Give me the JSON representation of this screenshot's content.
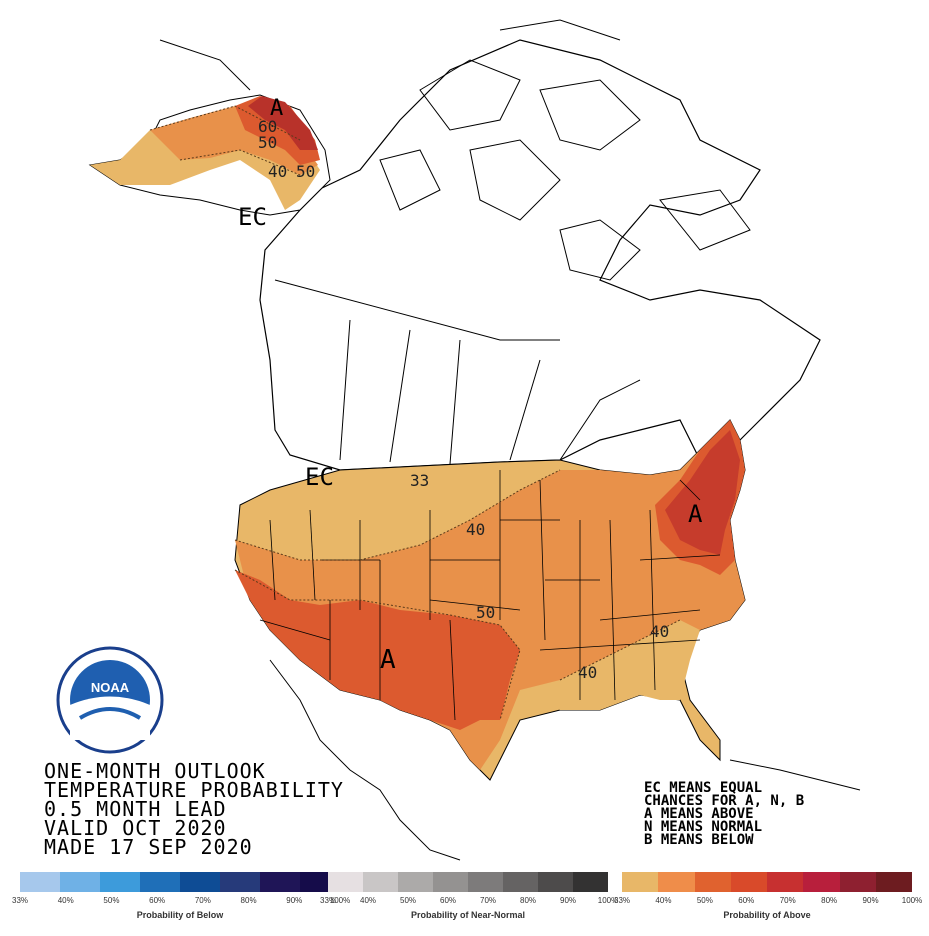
{
  "title_lines": [
    "ONE-MONTH OUTLOOK",
    "TEMPERATURE PROBABILITY",
    "0.5 MONTH LEAD",
    "VALID OCT 2020",
    "MADE 17 SEP 2020"
  ],
  "legend_note": [
    "EC MEANS EQUAL",
    "CHANCES FOR A, N, B",
    "A MEANS ABOVE",
    "N MEANS NORMAL",
    "B MEANS BELOW"
  ],
  "map_labels": {
    "alaska_a": "A",
    "alaska_ec": "EC",
    "conus_ec": "EC",
    "southwest_a": "A",
    "northeast_a": "A"
  },
  "contour_labels": {
    "ak_60": "60",
    "ak_50a": "50",
    "ak_40": "40",
    "ak_50b": "50",
    "c33": "33",
    "c40_north": "40",
    "c50": "50",
    "c40_se1": "40",
    "c40_se2": "40"
  },
  "noaa_logo_text": "NOAA",
  "colorbars": {
    "below": {
      "title": "Probability of Below",
      "colors": [
        "#a6c8ec",
        "#6fb1e6",
        "#3d9bdb",
        "#1f6fb8",
        "#0e4c95",
        "#263a7a",
        "#1f1557",
        "#150c4a"
      ],
      "ticks": [
        "33%",
        "40%",
        "50%",
        "60%",
        "70%",
        "80%",
        "90%",
        "100%"
      ]
    },
    "normal": {
      "title": "Probability of Near-Normal",
      "colors": [
        "#e6e0e2",
        "#c9c6c6",
        "#acaaa9",
        "#949291",
        "#7d7b7b",
        "#656363",
        "#4d4b4b",
        "#333232"
      ],
      "ticks": [
        "33%",
        "40%",
        "50%",
        "60%",
        "70%",
        "80%",
        "90%",
        "100%"
      ]
    },
    "above": {
      "title": "Probability of Above",
      "colors": [
        "#e8b768",
        "#ef8d4a",
        "#e0622f",
        "#d94a2a",
        "#c73030",
        "#b81f3c",
        "#8e2030",
        "#6d1c20"
      ],
      "ticks": [
        "33%",
        "40%",
        "50%",
        "60%",
        "70%",
        "80%",
        "90%",
        "100%"
      ]
    }
  },
  "fill_colors": {
    "above_33": "#e8b768",
    "above_40": "#e8914a",
    "above_50": "#dc5a2f",
    "above_60": "#c63c2c"
  }
}
